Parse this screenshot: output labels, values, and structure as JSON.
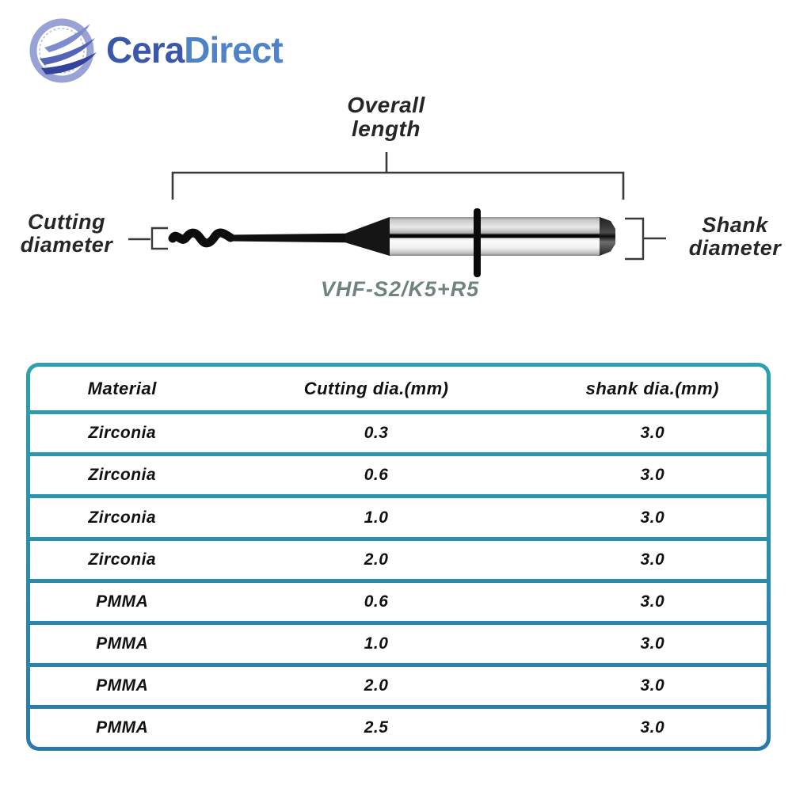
{
  "brand": {
    "name_part1": "Cera",
    "name_part2": "Direct",
    "color_part1": "#3a57a8",
    "color_part2": "#4f83c8",
    "mark": {
      "ring_color": "#98a2d4",
      "ring_inner_color": "#b9c0e0",
      "swoosh_top_color": "#7d8bd0",
      "swoosh_mid_color": "#5363b6",
      "swoosh_bottom_color": "#33429b"
    }
  },
  "diagram": {
    "overall_length_label": "Overall length",
    "cutting_diameter_label": "Cutting diameter",
    "shank_diameter_label": "Shank diameter",
    "model_label": "VHF-S2/K5+R5",
    "model_color": "#6f837f",
    "line_color": "#3a3a3a"
  },
  "spec_table": {
    "columns": [
      "Material",
      "Cutting dia.(mm)",
      "shank dia.(mm)"
    ],
    "rows": [
      [
        "Zirconia",
        "0.3",
        "3.0"
      ],
      [
        "Zirconia",
        "0.6",
        "3.0"
      ],
      [
        "Zirconia",
        "1.0",
        "3.0"
      ],
      [
        "Zirconia",
        "2.0",
        "3.0"
      ],
      [
        "PMMA",
        "0.6",
        "3.0"
      ],
      [
        "PMMA",
        "1.0",
        "3.0"
      ],
      [
        "PMMA",
        "2.0",
        "3.0"
      ],
      [
        "PMMA",
        "2.5",
        "3.0"
      ]
    ],
    "border_gradient_top": "#2ba2ad",
    "border_gradient_bottom": "#2a79ad",
    "row_background": "#ffffff",
    "text_color": "#111111"
  }
}
